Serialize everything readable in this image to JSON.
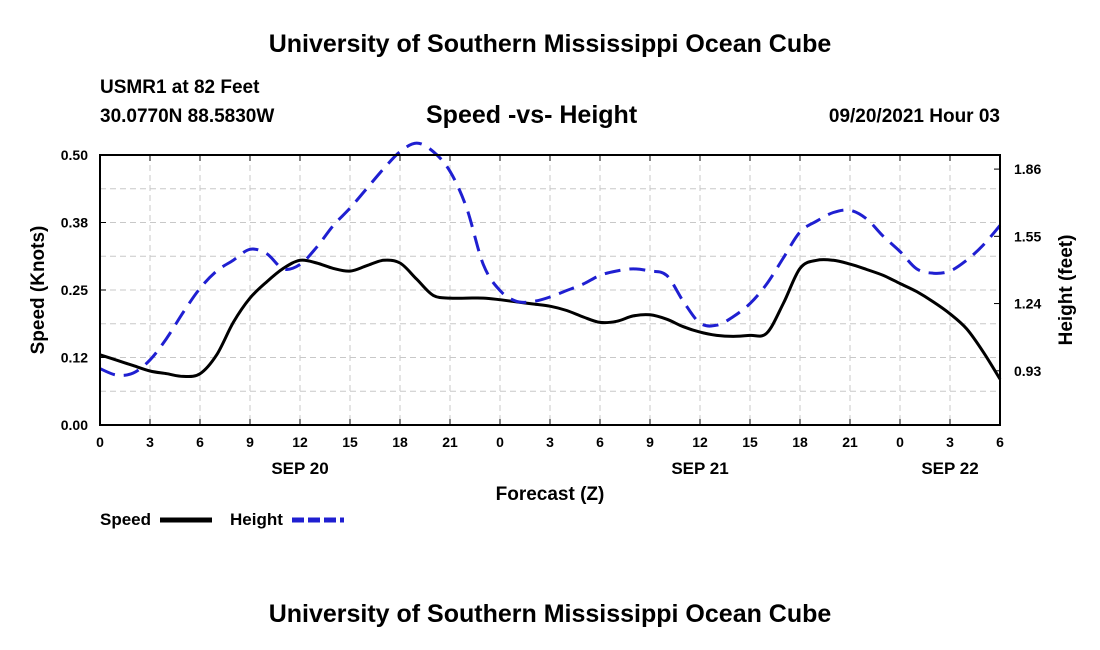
{
  "page": {
    "top_title": "University of Southern Mississippi Ocean Cube",
    "bottom_title": "University of Southern Mississippi Ocean Cube",
    "station": "USMR1 at 82 Feet",
    "coords": "30.0770N  88.5830W",
    "subtitle": "Speed -vs- Height",
    "datetime": "09/20/2021 Hour 03"
  },
  "colors": {
    "speed": "#000000",
    "height": "#1f1fd1",
    "grid": "#c8c8c8"
  },
  "chart_data": {
    "type": "line",
    "xlabel": "Forecast (Z)",
    "ylabel": "Speed (Knots)",
    "y2label": "Height (feet)",
    "x_ticks": [
      "0",
      "3",
      "6",
      "9",
      "12",
      "15",
      "18",
      "21",
      "0",
      "3",
      "6",
      "9",
      "12",
      "15",
      "18",
      "21",
      "0",
      "3",
      "6"
    ],
    "date_labels": [
      {
        "label": "SEP 20",
        "at_hour": 12
      },
      {
        "label": "SEP 21",
        "at_hour": 36
      },
      {
        "label": "SEP 22",
        "at_hour": 51
      }
    ],
    "xlim": [
      0,
      54
    ],
    "ylim": [
      0,
      0.5
    ],
    "y_ticks": [
      "0.00",
      "0.12",
      "0.25",
      "0.38",
      "0.50"
    ],
    "y2lim": [
      0.68,
      1.925
    ],
    "y2_ticks": [
      "0.93",
      "1.24",
      "1.55",
      "1.86"
    ],
    "series": [
      {
        "name": "Speed",
        "axis": "left",
        "style": "solid",
        "x": [
          0,
          1,
          2,
          3,
          4,
          5,
          6,
          7,
          8,
          9,
          10,
          11,
          12,
          13,
          14,
          15,
          16,
          17,
          18,
          19,
          20,
          21,
          22,
          23,
          24,
          25,
          26,
          27,
          28,
          29,
          30,
          31,
          32,
          33,
          34,
          35,
          36,
          37,
          38,
          39,
          40,
          41,
          42,
          43,
          44,
          45,
          46,
          47,
          48,
          49,
          50,
          51,
          52,
          53,
          54
        ],
        "values": [
          0.13,
          0.12,
          0.11,
          0.1,
          0.095,
          0.09,
          0.095,
          0.13,
          0.19,
          0.235,
          0.265,
          0.29,
          0.305,
          0.3,
          0.29,
          0.285,
          0.295,
          0.305,
          0.3,
          0.27,
          0.24,
          0.235,
          0.235,
          0.235,
          0.232,
          0.228,
          0.224,
          0.22,
          0.212,
          0.2,
          0.19,
          0.192,
          0.202,
          0.204,
          0.196,
          0.182,
          0.172,
          0.166,
          0.164,
          0.166,
          0.17,
          0.225,
          0.29,
          0.305,
          0.305,
          0.298,
          0.288,
          0.277,
          0.262,
          0.247,
          0.228,
          0.206,
          0.178,
          0.135,
          0.085
        ]
      },
      {
        "name": "Height",
        "axis": "right",
        "style": "dashed",
        "x": [
          0,
          1,
          2,
          3,
          4,
          5,
          6,
          7,
          8,
          9,
          10,
          11,
          12,
          13,
          14,
          15,
          16,
          17,
          18,
          19,
          20,
          21,
          22,
          23,
          24,
          25,
          26,
          27,
          28,
          29,
          30,
          31,
          32,
          33,
          34,
          35,
          36,
          37,
          38,
          39,
          40,
          41,
          42,
          43,
          44,
          45,
          46,
          47,
          48,
          49,
          50,
          51,
          52,
          53,
          54
        ],
        "values": [
          0.94,
          0.91,
          0.92,
          0.98,
          1.08,
          1.2,
          1.31,
          1.39,
          1.44,
          1.49,
          1.47,
          1.4,
          1.42,
          1.5,
          1.6,
          1.68,
          1.77,
          1.86,
          1.94,
          1.98,
          1.94,
          1.85,
          1.68,
          1.42,
          1.3,
          1.25,
          1.25,
          1.27,
          1.3,
          1.33,
          1.37,
          1.39,
          1.4,
          1.39,
          1.37,
          1.25,
          1.15,
          1.14,
          1.18,
          1.24,
          1.33,
          1.45,
          1.57,
          1.62,
          1.66,
          1.67,
          1.63,
          1.55,
          1.48,
          1.4,
          1.38,
          1.39,
          1.44,
          1.51,
          1.6
        ]
      }
    ],
    "legend": [
      {
        "label": "Speed",
        "style": "solid"
      },
      {
        "label": "Height",
        "style": "dashed"
      }
    ],
    "grid": true,
    "legend_position": "bottom-left"
  }
}
